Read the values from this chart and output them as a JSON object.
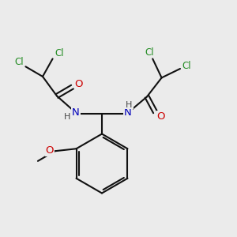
{
  "bg_color": "#ebebeb",
  "bond_color": "#111111",
  "N_color": "#0000bb",
  "O_color": "#cc0000",
  "Cl_color": "#228B22",
  "bond_width": 1.5,
  "font_size": 8.5,
  "fig_size": [
    3.0,
    3.0
  ],
  "dpi": 100,
  "xlim": [
    0,
    10
  ],
  "ylim": [
    0,
    10
  ]
}
